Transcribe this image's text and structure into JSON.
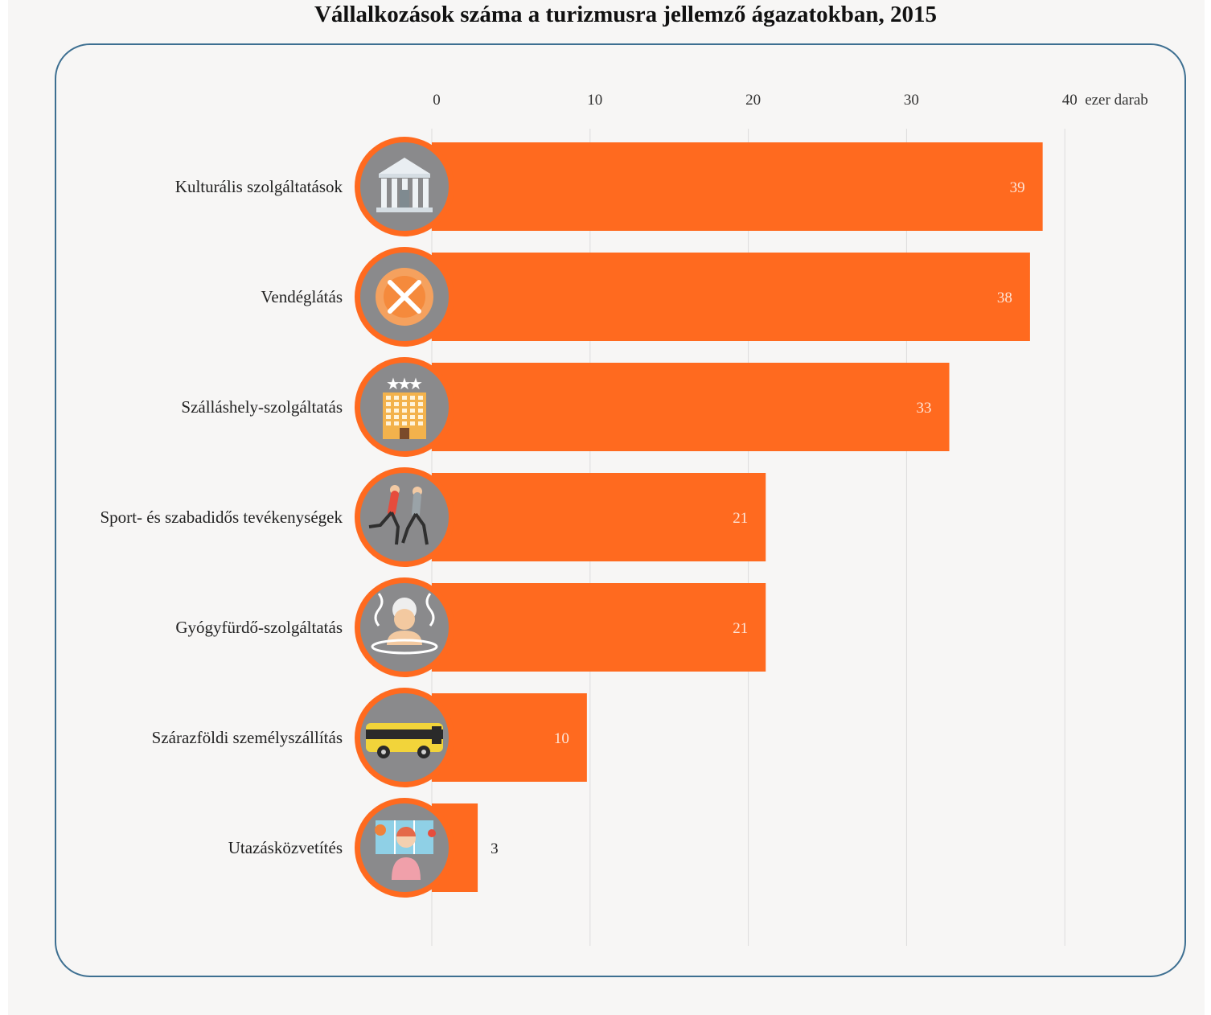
{
  "colors": {
    "bar": "#ff6a1f",
    "icon_bg": "#8a8a8c",
    "icon_ring": "#ff6a1f",
    "grid": "#dcdcdc",
    "frame": "#3d6f91",
    "value_inside": "#fde5d8",
    "value_outside": "#222222"
  },
  "chart_data": {
    "type": "bar",
    "orientation": "horizontal",
    "title": "Vállalkozások száma a turizmusra jellemző ágazatokban, 2015",
    "unit": "ezer darab",
    "xlim": [
      0,
      40
    ],
    "ticks": [
      0,
      10,
      20,
      30,
      40
    ],
    "tick_labels": [
      "0",
      "10",
      "20",
      "30",
      "40"
    ],
    "grid": true,
    "categories": [
      "Kulturális szolgáltatások",
      "Vendéglátás",
      "Szálláshely-szolgáltatás",
      "Sport- és szabadidős tevékenységek",
      "Gyógyfürdő-szolgáltatás",
      "Szárazföldi személyszállítás",
      "Utazásközvetítés"
    ],
    "values": [
      38.6,
      37.8,
      32.7,
      21.1,
      21.1,
      9.8,
      2.9
    ],
    "value_labels": [
      "39",
      "38",
      "33",
      "21",
      "21",
      "10",
      "3"
    ],
    "icons": [
      "museum-icon",
      "restaurant-icon",
      "hotel-icon",
      "runners-icon",
      "spa-icon",
      "bus-icon",
      "travel-agent-icon"
    ]
  }
}
